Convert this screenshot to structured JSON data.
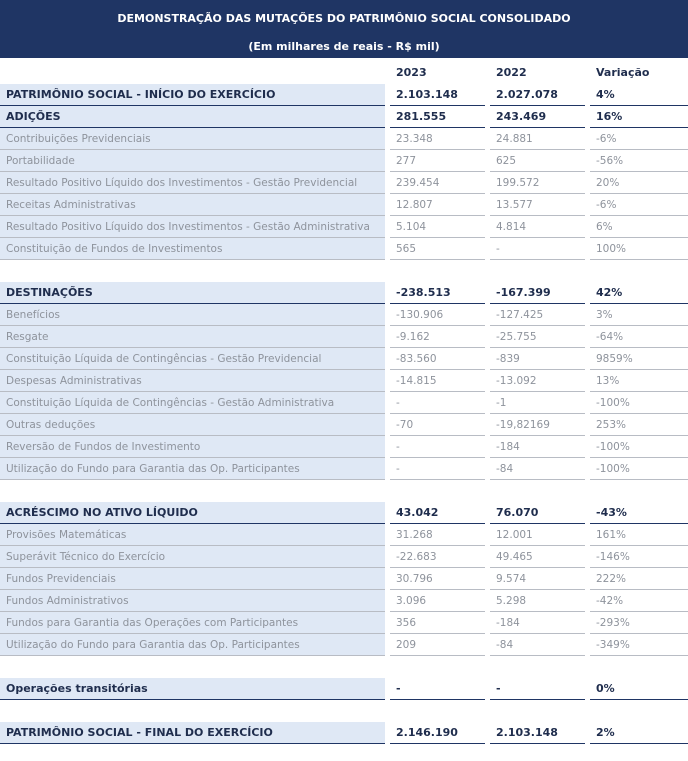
{
  "header": {
    "title": "DEMONSTRAÇÃO DAS MUTAÇÕES DO PATRIMÔNIO SOCIAL CONSOLIDADO",
    "subtitle": "(Em milhares de reais - R$ mil)"
  },
  "table": {
    "columns": [
      "2023",
      "2022",
      "Variação"
    ],
    "groups": [
      {
        "heads": [
          [
            "PATRIMÔNIO SOCIAL - INÍCIO DO EXERCÍCIO",
            "2.103.148",
            "2.027.078",
            "4%"
          ],
          [
            "ADIÇÕES",
            "281.555",
            "243.469",
            "16%"
          ]
        ],
        "items": [
          [
            "Contribuições Previdenciais",
            "23.348",
            "24.881",
            "-6%"
          ],
          [
            "Portabilidade",
            "277",
            "625",
            "-56%"
          ],
          [
            "Resultado Positivo Líquido dos Investimentos - Gestão Previdencial",
            "239.454",
            "199.572",
            "20%"
          ],
          [
            "Receitas Administrativas",
            "12.807",
            "13.577",
            "-6%"
          ],
          [
            "Resultado Positivo Líquido dos Investimentos - Gestão Administrativa",
            "5.104",
            "4.814",
            "6%"
          ],
          [
            "Constituição de Fundos de Investimentos",
            "565",
            "-",
            "100%"
          ]
        ]
      },
      {
        "heads": [
          [
            "DESTINAÇÕES",
            "-238.513",
            "-167.399",
            "42%"
          ]
        ],
        "items": [
          [
            "Benefícios",
            "-130.906",
            "-127.425",
            "3%"
          ],
          [
            "Resgate",
            "-9.162",
            "-25.755",
            "-64%"
          ],
          [
            "Constituição Líquida de Contingências - Gestão Previdencial",
            "-83.560",
            "-839",
            "9859%"
          ],
          [
            "Despesas Administrativas",
            "-14.815",
            "-13.092",
            "13%"
          ],
          [
            "Constituição Líquida de Contingências - Gestão Administrativa",
            "-",
            "-1",
            "-100%"
          ],
          [
            "Outras deduções",
            "-70",
            "-19,82169",
            "253%"
          ],
          [
            "Reversão de Fundos de Investimento",
            "-",
            "-184",
            "-100%"
          ],
          [
            "Utilização do Fundo para Garantia das Op. Participantes",
            "-",
            "-84",
            "-100%"
          ]
        ]
      },
      {
        "heads": [
          [
            "ACRÉSCIMO NO ATIVO LÍQUIDO",
            "43.042",
            "76.070",
            "-43%"
          ]
        ],
        "items": [
          [
            "Provisões Matemáticas",
            "31.268",
            "12.001",
            "161%"
          ],
          [
            "Superávit Técnico do Exercício",
            "-22.683",
            "49.465",
            "-146%"
          ],
          [
            "Fundos Previdenciais",
            "30.796",
            "9.574",
            "222%"
          ],
          [
            "Fundos Administrativos",
            "3.096",
            "5.298",
            "-42%"
          ],
          [
            "Fundos para Garantia das Operações com Participantes",
            "356",
            "-184",
            "-293%"
          ],
          [
            "Utilização do Fundo para Garantia das Op. Participantes",
            "209",
            "-84",
            "-349%"
          ]
        ]
      },
      {
        "heads": [
          [
            "Operações transitórias",
            "-",
            "-",
            "0%"
          ]
        ],
        "items": []
      },
      {
        "heads": [
          [
            "PATRIMÔNIO SOCIAL - FINAL DO EXERCÍCIO",
            "2.146.190",
            "2.103.148",
            "2%"
          ]
        ],
        "items": []
      }
    ]
  }
}
